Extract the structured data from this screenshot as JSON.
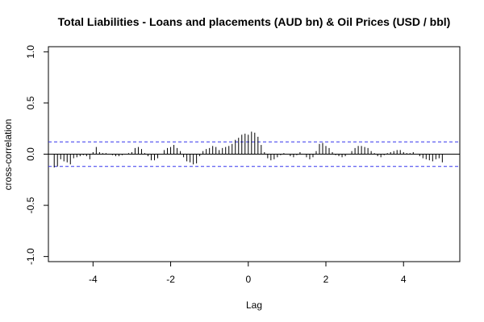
{
  "chart_data": {
    "type": "bar",
    "title": "Total Liabilities - Loans and placements (AUD bn) & Oil Prices (USD / bbl)",
    "xlabel": "Lag",
    "ylabel": "cross-correlation",
    "xlim": [
      -5.15,
      5.45
    ],
    "ylim": [
      -1.05,
      1.05
    ],
    "x_ticks": [
      -4,
      -2,
      0,
      2,
      4
    ],
    "x_tick_labels": [
      "-4",
      "-2",
      "0",
      "2",
      "4"
    ],
    "y_ticks": [
      -1.0,
      -0.5,
      0.0,
      0.5,
      1.0
    ],
    "y_tick_labels": [
      "-1.0",
      "-0.5",
      "0.0",
      "0.5",
      "1.0"
    ],
    "confidence_band": [
      0.12,
      -0.12
    ],
    "colors": {
      "bars": "#000000",
      "zero_line": "#000000",
      "band": "#3333ee",
      "frame": "#000000"
    },
    "lag_step": 0.0833333,
    "lag_start": -5,
    "values": [
      -0.13,
      -0.12,
      -0.05,
      -0.07,
      -0.08,
      -0.1,
      -0.04,
      -0.03,
      -0.02,
      -0.01,
      -0.02,
      -0.05,
      0.02,
      0.07,
      0.02,
      0.01,
      0.01,
      0.0,
      -0.01,
      -0.02,
      -0.02,
      -0.01,
      0.0,
      0.01,
      0.02,
      0.06,
      0.07,
      0.05,
      0.01,
      -0.02,
      -0.06,
      -0.06,
      -0.04,
      0.0,
      0.04,
      0.06,
      0.07,
      0.09,
      0.06,
      0.03,
      -0.03,
      -0.07,
      -0.08,
      -0.1,
      -0.09,
      -0.02,
      0.03,
      0.05,
      0.06,
      0.08,
      0.07,
      0.04,
      0.06,
      0.07,
      0.08,
      0.1,
      0.14,
      0.16,
      0.19,
      0.2,
      0.19,
      0.22,
      0.21,
      0.17,
      0.09,
      0.02,
      -0.04,
      -0.06,
      -0.05,
      -0.03,
      -0.01,
      0.01,
      0.0,
      -0.02,
      -0.03,
      -0.01,
      0.02,
      0.0,
      -0.03,
      -0.05,
      -0.03,
      0.03,
      0.1,
      0.11,
      0.08,
      0.06,
      0.02,
      -0.01,
      -0.02,
      -0.03,
      -0.02,
      0.0,
      0.03,
      0.06,
      0.08,
      0.08,
      0.07,
      0.06,
      0.03,
      0.01,
      -0.02,
      -0.03,
      -0.01,
      0.01,
      0.02,
      0.03,
      0.04,
      0.04,
      0.02,
      0.01,
      0.01,
      0.02,
      0.0,
      -0.02,
      -0.04,
      -0.05,
      -0.06,
      -0.07,
      -0.05,
      -0.04,
      -0.08
    ]
  }
}
